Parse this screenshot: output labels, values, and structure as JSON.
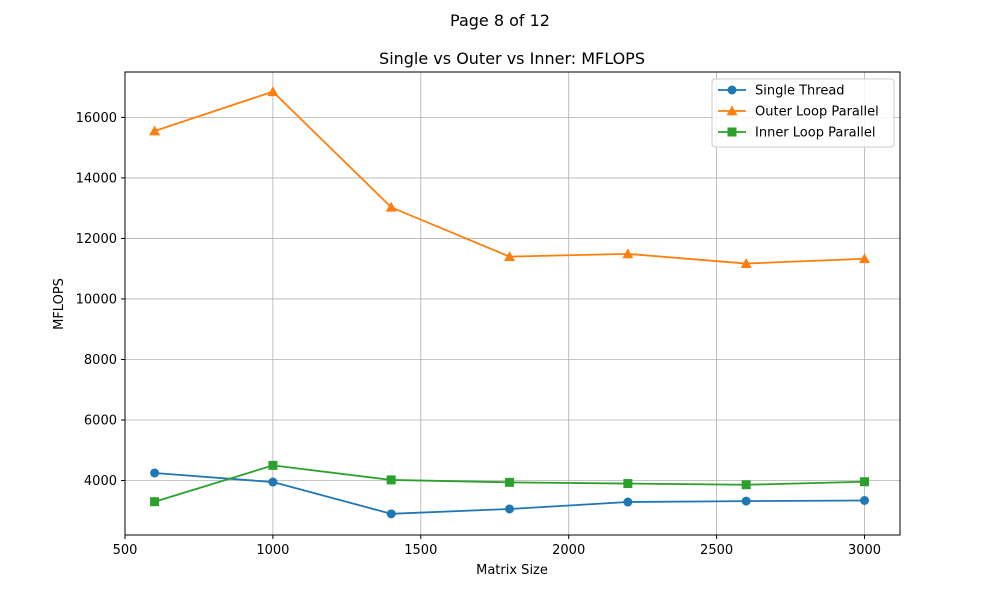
{
  "page": {
    "header": "Page 8 of 12"
  },
  "chart_data": {
    "type": "line",
    "title": "Single vs Outer vs Inner: MFLOPS",
    "xlabel": "Matrix Size",
    "ylabel": "MFLOPS",
    "x": [
      600,
      1000,
      1400,
      1800,
      2200,
      2600,
      3000
    ],
    "xlim": [
      500,
      3120
    ],
    "ylim": [
      2200,
      17500
    ],
    "xticks": [
      500,
      1000,
      1500,
      2000,
      2500,
      3000
    ],
    "yticks": [
      4000,
      6000,
      8000,
      10000,
      12000,
      14000,
      16000
    ],
    "grid": true,
    "legend_position": "top-right",
    "series": [
      {
        "name": "Single Thread",
        "color": "#1f77b4",
        "marker": "circle",
        "values": [
          4250,
          3950,
          2900,
          3060,
          3290,
          3320,
          3340
        ]
      },
      {
        "name": "Outer Loop Parallel",
        "color": "#ff7f0e",
        "marker": "triangle",
        "values": [
          15550,
          16850,
          13030,
          11400,
          11490,
          11170,
          11330
        ]
      },
      {
        "name": "Inner Loop Parallel",
        "color": "#2ca02c",
        "marker": "square",
        "values": [
          3300,
          4500,
          4020,
          3940,
          3900,
          3860,
          3960
        ]
      }
    ]
  }
}
